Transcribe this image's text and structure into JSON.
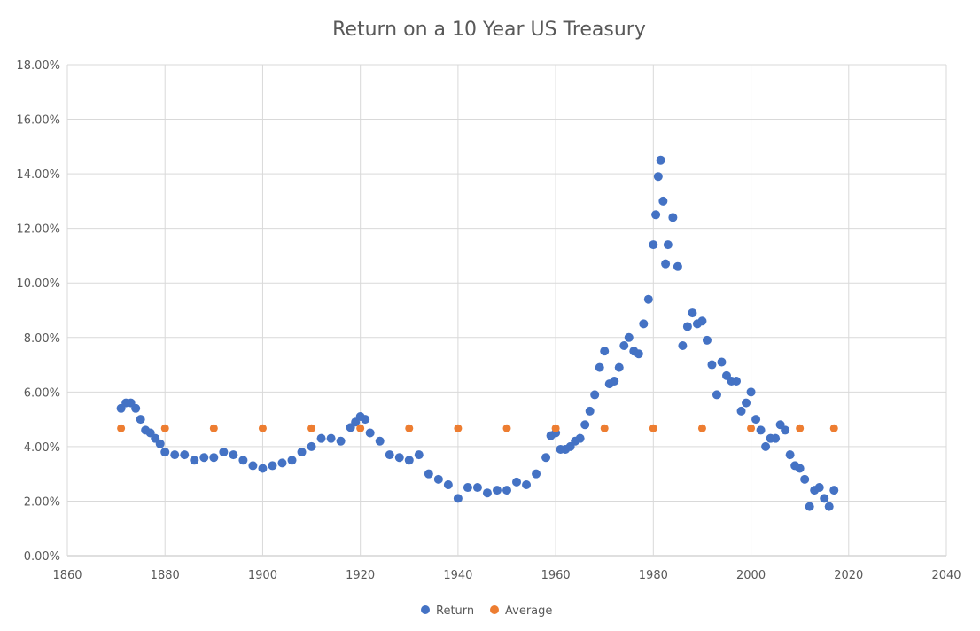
{
  "chart_data": {
    "type": "scatter",
    "title": "Return on a 10 Year US Treasury",
    "xlabel": "",
    "ylabel": "",
    "xlim": [
      1860,
      2040
    ],
    "ylim": [
      0,
      0.18
    ],
    "x_ticks": [
      1860,
      1880,
      1900,
      1920,
      1940,
      1960,
      1980,
      2000,
      2020,
      2040
    ],
    "x_tick_labels": [
      "1860",
      "1880",
      "1900",
      "1920",
      "1940",
      "1960",
      "1980",
      "2000",
      "2020",
      "2040"
    ],
    "y_ticks": [
      0,
      0.02,
      0.04,
      0.06,
      0.08,
      0.1,
      0.12,
      0.14,
      0.16,
      0.18
    ],
    "y_tick_labels": [
      "0.00%",
      "2.00%",
      "4.00%",
      "6.00%",
      "8.00%",
      "10.00%",
      "12.00%",
      "14.00%",
      "16.00%",
      "18.00%"
    ],
    "grid": true,
    "legend_position": "bottom",
    "series": [
      {
        "name": "Return",
        "color": "#4472c4",
        "points": [
          [
            1871,
            0.054
          ],
          [
            1872,
            0.056
          ],
          [
            1873,
            0.056
          ],
          [
            1874,
            0.054
          ],
          [
            1875,
            0.05
          ],
          [
            1876,
            0.046
          ],
          [
            1877,
            0.045
          ],
          [
            1878,
            0.043
          ],
          [
            1879,
            0.041
          ],
          [
            1880,
            0.038
          ],
          [
            1882,
            0.037
          ],
          [
            1884,
            0.037
          ],
          [
            1886,
            0.035
          ],
          [
            1888,
            0.036
          ],
          [
            1890,
            0.036
          ],
          [
            1892,
            0.038
          ],
          [
            1894,
            0.037
          ],
          [
            1896,
            0.035
          ],
          [
            1898,
            0.033
          ],
          [
            1900,
            0.032
          ],
          [
            1902,
            0.033
          ],
          [
            1904,
            0.034
          ],
          [
            1906,
            0.035
          ],
          [
            1908,
            0.038
          ],
          [
            1910,
            0.04
          ],
          [
            1912,
            0.043
          ],
          [
            1914,
            0.043
          ],
          [
            1916,
            0.042
          ],
          [
            1918,
            0.047
          ],
          [
            1919,
            0.049
          ],
          [
            1920,
            0.051
          ],
          [
            1921,
            0.05
          ],
          [
            1922,
            0.045
          ],
          [
            1924,
            0.042
          ],
          [
            1926,
            0.037
          ],
          [
            1928,
            0.036
          ],
          [
            1930,
            0.035
          ],
          [
            1932,
            0.037
          ],
          [
            1934,
            0.03
          ],
          [
            1936,
            0.028
          ],
          [
            1938,
            0.026
          ],
          [
            1940,
            0.021
          ],
          [
            1942,
            0.025
          ],
          [
            1944,
            0.025
          ],
          [
            1946,
            0.023
          ],
          [
            1948,
            0.024
          ],
          [
            1950,
            0.024
          ],
          [
            1952,
            0.027
          ],
          [
            1954,
            0.026
          ],
          [
            1956,
            0.03
          ],
          [
            1958,
            0.036
          ],
          [
            1959,
            0.044
          ],
          [
            1960,
            0.045
          ],
          [
            1961,
            0.039
          ],
          [
            1962,
            0.039
          ],
          [
            1963,
            0.04
          ],
          [
            1964,
            0.042
          ],
          [
            1965,
            0.043
          ],
          [
            1966,
            0.048
          ],
          [
            1967,
            0.053
          ],
          [
            1968,
            0.059
          ],
          [
            1969,
            0.069
          ],
          [
            1970,
            0.075
          ],
          [
            1971,
            0.063
          ],
          [
            1972,
            0.064
          ],
          [
            1973,
            0.069
          ],
          [
            1974,
            0.077
          ],
          [
            1975,
            0.08
          ],
          [
            1976,
            0.075
          ],
          [
            1977,
            0.074
          ],
          [
            1978,
            0.085
          ],
          [
            1979,
            0.094
          ],
          [
            1980,
            0.114
          ],
          [
            1980.5,
            0.125
          ],
          [
            1981,
            0.139
          ],
          [
            1981.5,
            0.145
          ],
          [
            1982,
            0.13
          ],
          [
            1982.5,
            0.107
          ],
          [
            1983,
            0.114
          ],
          [
            1984,
            0.124
          ],
          [
            1985,
            0.106
          ],
          [
            1986,
            0.077
          ],
          [
            1987,
            0.084
          ],
          [
            1988,
            0.089
          ],
          [
            1989,
            0.085
          ],
          [
            1990,
            0.086
          ],
          [
            1991,
            0.079
          ],
          [
            1992,
            0.07
          ],
          [
            1993,
            0.059
          ],
          [
            1994,
            0.071
          ],
          [
            1995,
            0.066
          ],
          [
            1996,
            0.064
          ],
          [
            1997,
            0.064
          ],
          [
            1998,
            0.053
          ],
          [
            1999,
            0.056
          ],
          [
            2000,
            0.06
          ],
          [
            2001,
            0.05
          ],
          [
            2002,
            0.046
          ],
          [
            2003,
            0.04
          ],
          [
            2004,
            0.043
          ],
          [
            2005,
            0.043
          ],
          [
            2006,
            0.048
          ],
          [
            2007,
            0.046
          ],
          [
            2008,
            0.037
          ],
          [
            2009,
            0.033
          ],
          [
            2010,
            0.032
          ],
          [
            2011,
            0.028
          ],
          [
            2012,
            0.018
          ],
          [
            2013,
            0.024
          ],
          [
            2014,
            0.025
          ],
          [
            2015,
            0.021
          ],
          [
            2016,
            0.018
          ],
          [
            2017,
            0.024
          ]
        ]
      },
      {
        "name": "Average",
        "color": "#ed7d31",
        "points": [
          [
            1871,
            0.0467
          ],
          [
            1880,
            0.0467
          ],
          [
            1890,
            0.0467
          ],
          [
            1900,
            0.0467
          ],
          [
            1910,
            0.0467
          ],
          [
            1920,
            0.0467
          ],
          [
            1930,
            0.0467
          ],
          [
            1940,
            0.0467
          ],
          [
            1950,
            0.0467
          ],
          [
            1960,
            0.0467
          ],
          [
            1970,
            0.0467
          ],
          [
            1980,
            0.0467
          ],
          [
            1990,
            0.0467
          ],
          [
            2000,
            0.0467
          ],
          [
            2010,
            0.0467
          ],
          [
            2017,
            0.0467
          ]
        ]
      }
    ]
  }
}
